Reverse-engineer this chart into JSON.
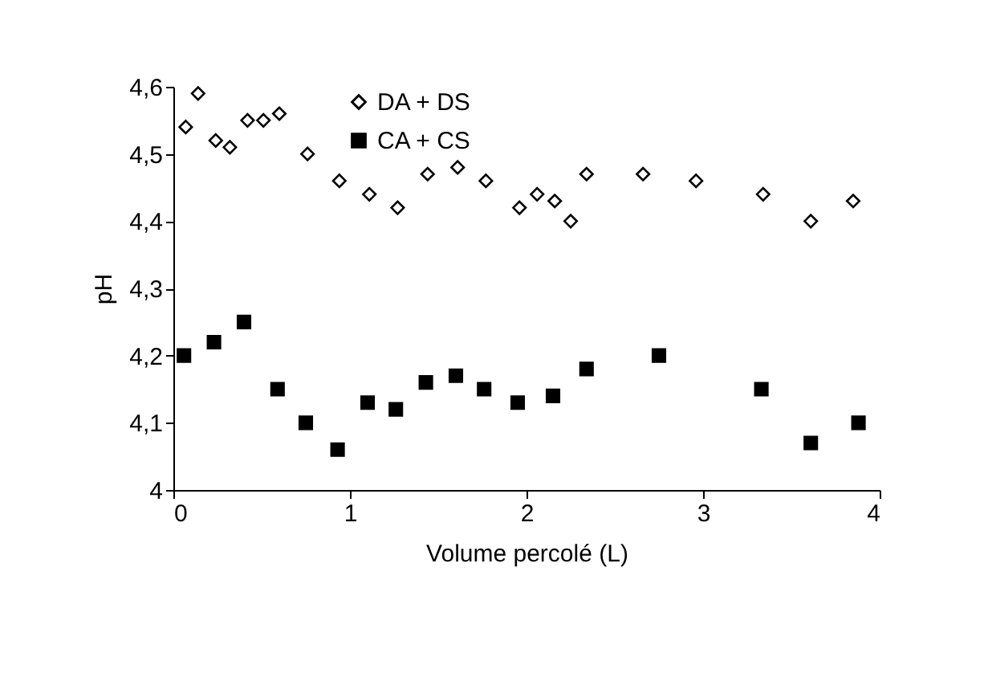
{
  "chart_data": {
    "type": "scatter",
    "xlabel": "Volume percolé (L)",
    "ylabel": "pH",
    "xlim": [
      0,
      4
    ],
    "xticks": [
      0,
      1,
      2,
      3,
      4
    ],
    "ylim": [
      4,
      4.6
    ],
    "yticks": [
      {
        "value": 4,
        "label": "4"
      },
      {
        "value": 4.1,
        "label": "4,1"
      },
      {
        "value": 4.2,
        "label": "4,2"
      },
      {
        "value": 4.3,
        "label": "4,3"
      },
      {
        "value": 4.4,
        "label": "4,4"
      },
      {
        "value": 4.5,
        "label": "4,5"
      },
      {
        "value": 4.6,
        "label": "4,6"
      }
    ],
    "grid": false,
    "legend": "top",
    "series": [
      {
        "name": "DA + DS",
        "color": "#000000",
        "marker": "diamond",
        "x": [
          0.07,
          0.14,
          0.24,
          0.32,
          0.42,
          0.51,
          0.6,
          0.76,
          0.94,
          1.11,
          1.27,
          1.44,
          1.61,
          1.77,
          1.96,
          2.06,
          2.16,
          2.25,
          2.34,
          2.66,
          2.96,
          3.34,
          3.61,
          3.85
        ],
        "values": [
          4.54,
          4.59,
          4.52,
          4.51,
          4.55,
          4.55,
          4.56,
          4.5,
          4.46,
          4.44,
          4.42,
          4.47,
          4.48,
          4.46,
          4.42,
          4.44,
          4.43,
          4.4,
          4.47,
          4.47,
          4.46,
          4.44,
          4.4,
          4.43
        ]
      },
      {
        "name": "CA + CS",
        "color": "#000000",
        "marker": "square",
        "x": [
          0.06,
          0.23,
          0.4,
          0.59,
          0.75,
          0.93,
          1.1,
          1.26,
          1.43,
          1.6,
          1.76,
          1.95,
          2.15,
          2.34,
          2.75,
          3.33,
          3.61,
          3.88
        ],
        "values": [
          4.2,
          4.22,
          4.25,
          4.15,
          4.1,
          4.06,
          4.13,
          4.12,
          4.16,
          4.17,
          4.15,
          4.13,
          4.14,
          4.18,
          4.2,
          4.15,
          4.07,
          4.1
        ]
      }
    ]
  }
}
